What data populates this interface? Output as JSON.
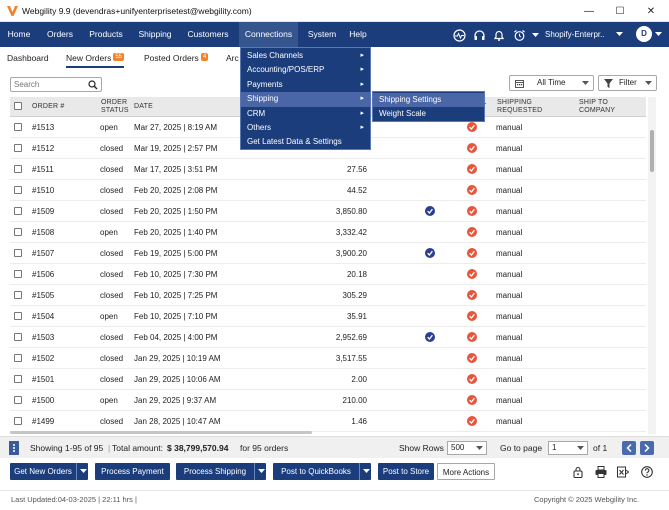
{
  "window": {
    "title": "Webgility 9.9 (devendras+unifyenterprisetest@webgility.com)",
    "minimize": "—",
    "maximize": "☐",
    "close": "✕"
  },
  "nav": {
    "items": [
      "Home",
      "Orders",
      "Products",
      "Shipping",
      "Customers",
      "Connections",
      "System",
      "Help"
    ],
    "active": "Connections",
    "store": "Shopify-Enterpr..",
    "avatar": "D"
  },
  "tabs": [
    {
      "label": "Dashboard"
    },
    {
      "label": "New Orders",
      "badge": "55"
    },
    {
      "label": "Posted Orders",
      "badge": "4"
    },
    {
      "label": "Arc"
    }
  ],
  "toolbar": {
    "search_placeholder": "Search",
    "date_filter": "All Time",
    "filter_label": "Filter"
  },
  "grid": {
    "headers": [
      "ORDER #",
      "ORDER STATUS",
      "DATE",
      "T",
      "SHIPPING REQUESTED",
      "SHIP TO COMPANY"
    ],
    "rows": [
      {
        "order": "#1513",
        "status": "open",
        "date": "Mar 27, 2025 | 8:19 AM",
        "amount": "",
        "blue": false,
        "red": true,
        "ship": "manual"
      },
      {
        "order": "#1512",
        "status": "closed",
        "date": "Mar 19, 2025 | 2:57 PM",
        "amount": "",
        "blue": false,
        "red": true,
        "ship": "manual"
      },
      {
        "order": "#1511",
        "status": "closed",
        "date": "Mar 17, 2025 | 3:51 PM",
        "amount": "27.56",
        "blue": false,
        "red": true,
        "ship": "manual"
      },
      {
        "order": "#1510",
        "status": "closed",
        "date": "Feb 20, 2025 | 2:08 PM",
        "amount": "44.52",
        "blue": false,
        "red": true,
        "ship": "manual"
      },
      {
        "order": "#1509",
        "status": "closed",
        "date": "Feb 20, 2025 | 1:50 PM",
        "amount": "3,850.80",
        "blue": true,
        "red": true,
        "ship": "manual"
      },
      {
        "order": "#1508",
        "status": "open",
        "date": "Feb 20, 2025 | 1:40 PM",
        "amount": "3,332.42",
        "blue": false,
        "red": true,
        "ship": "manual"
      },
      {
        "order": "#1507",
        "status": "closed",
        "date": "Feb 19, 2025 | 5:00 PM",
        "amount": "3,900.20",
        "blue": true,
        "red": true,
        "ship": "manual"
      },
      {
        "order": "#1506",
        "status": "closed",
        "date": "Feb 10, 2025 | 7:30 PM",
        "amount": "20.18",
        "blue": false,
        "red": true,
        "ship": "manual"
      },
      {
        "order": "#1505",
        "status": "closed",
        "date": "Feb 10, 2025 | 7:25 PM",
        "amount": "305.29",
        "blue": false,
        "red": true,
        "ship": "manual"
      },
      {
        "order": "#1504",
        "status": "open",
        "date": "Feb 10, 2025 | 7:10 PM",
        "amount": "35.91",
        "blue": false,
        "red": true,
        "ship": "manual"
      },
      {
        "order": "#1503",
        "status": "closed",
        "date": "Feb 04, 2025 | 4:00 PM",
        "amount": "2,952.69",
        "blue": true,
        "red": true,
        "ship": "manual"
      },
      {
        "order": "#1502",
        "status": "closed",
        "date": "Jan 29, 2025 | 10:19 AM",
        "amount": "3,517.55",
        "blue": false,
        "red": true,
        "ship": "manual"
      },
      {
        "order": "#1501",
        "status": "closed",
        "date": "Jan 29, 2025 | 10:06 AM",
        "amount": "2.00",
        "blue": false,
        "red": true,
        "ship": "manual"
      },
      {
        "order": "#1500",
        "status": "open",
        "date": "Jan 29, 2025 | 9:37 AM",
        "amount": "210.00",
        "blue": false,
        "red": true,
        "ship": "manual"
      },
      {
        "order": "#1499",
        "status": "closed",
        "date": "Jan 28, 2025 | 10:47 AM",
        "amount": "1.46",
        "blue": false,
        "red": true,
        "ship": "manual"
      }
    ]
  },
  "connections_menu": {
    "items": [
      "Sales Channels",
      "Accounting/POS/ERP",
      "Payments",
      "Shipping",
      "CRM",
      "Others",
      "Get Latest Data & Settings"
    ],
    "highlighted": "Shipping"
  },
  "shipping_submenu": {
    "items": [
      "Shipping Settings",
      "Weight Scale"
    ]
  },
  "status": {
    "showing": "Showing 1-95 of 95",
    "total_label": "Total amount:",
    "total_value": "$ 38,799,570.94",
    "for_orders": "for 95 orders",
    "show_rows_label": "Show Rows",
    "show_rows_value": "500",
    "goto_label": "Go to page",
    "page_value": "1",
    "of_pages": "of 1"
  },
  "actions": {
    "get_new_orders": "Get New Orders",
    "process_payment": "Process Payment",
    "process_shipping": "Process Shipping",
    "post_quickbooks": "Post to QuickBooks",
    "post_store": "Post to Store",
    "more_actions": "More Actions"
  },
  "footer": {
    "last_updated": "Last Updated:04-03-2025 | 22:11 hrs |",
    "copyright": "Copyright © 2025 Webgility Inc."
  },
  "colors": {
    "nav_bg": "#1c3d7c",
    "accent_orange": "#f0832b",
    "status_red": "#e8553b",
    "status_blue": "#2c3f8f"
  }
}
